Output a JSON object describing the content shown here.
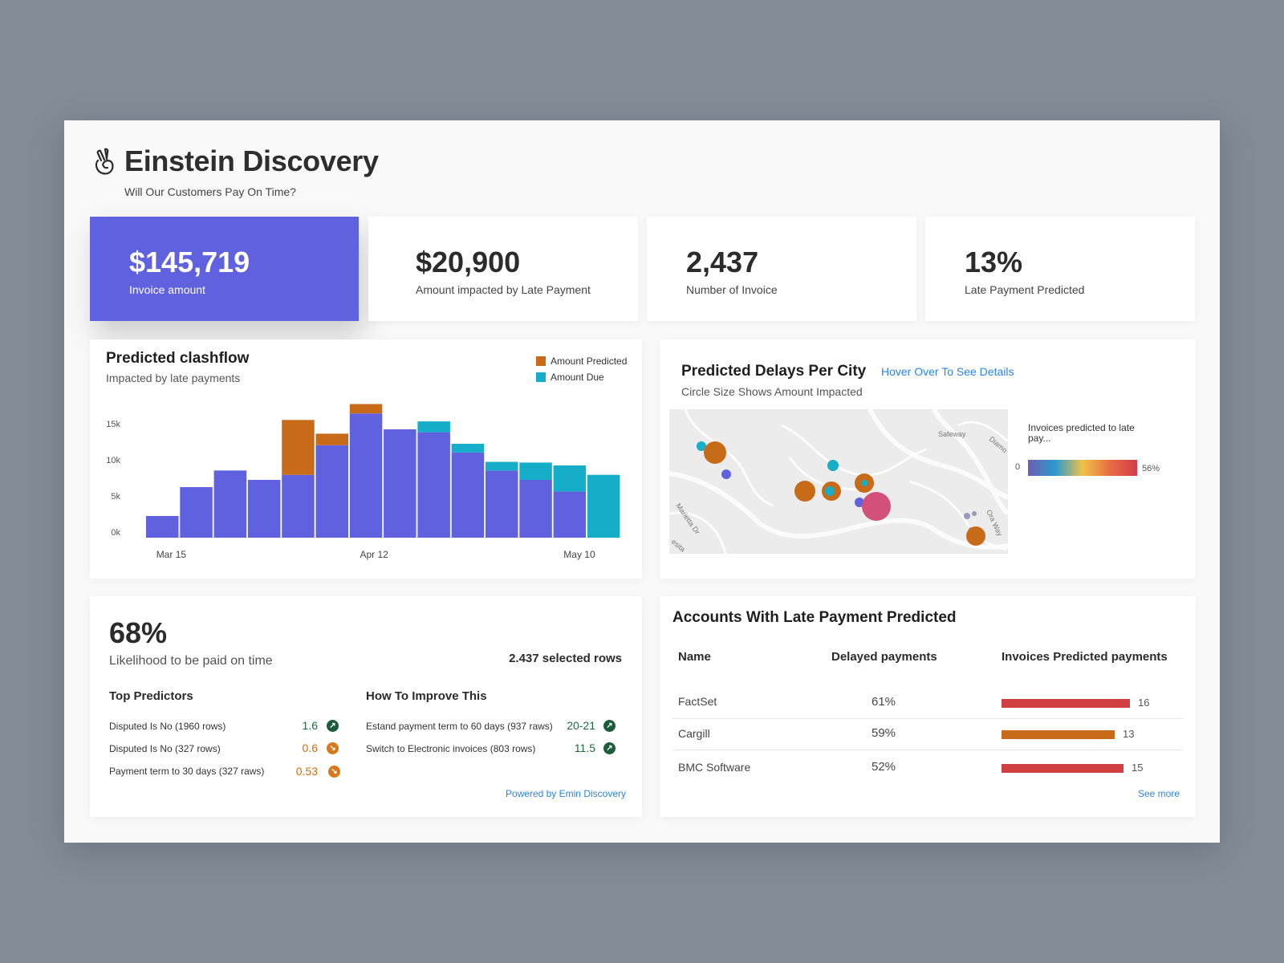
{
  "header": {
    "title": "Einstein Discovery",
    "subtitle": "Will Our Customers Pay On Time?"
  },
  "kpis": [
    {
      "value": "$145,719",
      "label": "Invoice amount"
    },
    {
      "value": "$20,900",
      "label": "Amount impacted by Late Payment"
    },
    {
      "value": "2,437",
      "label": "Number of Invoice"
    },
    {
      "value": "13%",
      "label": "Late Payment Predicted"
    }
  ],
  "cashflow": {
    "title": "Predicted clashflow",
    "subtitle": "Impacted by late payments",
    "legend": [
      "Amount Predicted",
      "Amount Due"
    ]
  },
  "chart_data": {
    "type": "bar",
    "stacked": true,
    "x_tick_labels": [
      "Mar 15",
      "Apr 12",
      "May  10"
    ],
    "y_tick_labels": [
      "0k",
      "5k",
      "10k",
      "15k"
    ],
    "ylim": [
      0,
      18000
    ],
    "grid": false,
    "legend_position": "top-right",
    "series": [
      {
        "name": "Amount Due",
        "color": "#6061de",
        "values": [
          3000,
          7000,
          9300,
          8000,
          8700,
          12800,
          17200,
          15000,
          14600,
          11800,
          9300,
          8000,
          6400,
          0
        ]
      },
      {
        "name": "Amount Due",
        "color": "#16adc9",
        "values": [
          0,
          0,
          0,
          0,
          0,
          0,
          0,
          0,
          1500,
          1200,
          1200,
          2400,
          3600,
          8700
        ]
      },
      {
        "name": "Amount Predicted",
        "color": "#c86b19",
        "values": [
          0,
          0,
          0,
          0,
          7600,
          1600,
          1300,
          0,
          0,
          0,
          0,
          0,
          0,
          0
        ]
      }
    ],
    "categories_count": 14
  },
  "map_panel": {
    "title": "Predicted Delays Per City",
    "hover_link": "Hover Over To See Details",
    "subtitle": "Circle Size Shows Amount Impacted",
    "street_labels": [
      "Safeway",
      "Diamo",
      "Marietta Dr",
      "Ora Way",
      "esita"
    ],
    "scale_title": "Invoices predicted to late pay...",
    "scale_min": "0",
    "scale_max": "56%"
  },
  "likelihood": {
    "value": "68%",
    "label": "Likelihood to be paid on time",
    "selected": "2.437 selected rows",
    "predictors_title": "Top Predictors",
    "improve_title": "How To Improve This",
    "predictors": [
      {
        "label": "Disputed Is No (1960 rows)",
        "value": "1.6",
        "trend": "up"
      },
      {
        "label": "Disputed Is No (327 rows)",
        "value": "0.6",
        "trend": "down"
      },
      {
        "label": "Payment term to 30 days (327 raws)",
        "value": "0.53",
        "trend": "down"
      }
    ],
    "improvements": [
      {
        "label": "Estand payment term to 60 days (937 raws)",
        "value": "20-21",
        "trend": "up"
      },
      {
        "label": "Switch to Electronic invoices (803 rows)",
        "value": "11.5",
        "trend": "up"
      }
    ],
    "powered": "Powered by Emin Discovery"
  },
  "accounts": {
    "title": "Accounts With Late Payment Predicted",
    "columns": [
      "Name",
      "Delayed payments",
      "Invoices Predicted payments"
    ],
    "rows": [
      {
        "name": "FactSet",
        "pct": "61%",
        "count": "16",
        "bar_fraction": 1.0,
        "color": "#d04043"
      },
      {
        "name": "Cargill",
        "pct": "59%",
        "count": "13",
        "bar_fraction": 0.88,
        "color": "#c86b19"
      },
      {
        "name": "BMC Software",
        "pct": "52%",
        "count": "15",
        "bar_fraction": 0.95,
        "color": "#d04043"
      }
    ],
    "see_more": "See more"
  }
}
